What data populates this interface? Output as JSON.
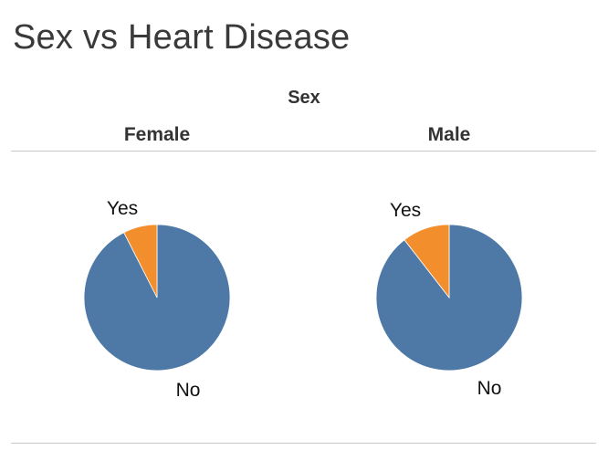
{
  "chart_data": {
    "type": "pie",
    "title": "Sex vs Heart Disease",
    "facet_header": "Sex",
    "colors": {
      "No": "#4e79a7",
      "Yes": "#f28e2b"
    },
    "panels": [
      {
        "name": "Female",
        "slices": [
          {
            "label": "No",
            "value": 92.5
          },
          {
            "label": "Yes",
            "value": 7.5
          }
        ]
      },
      {
        "name": "Male",
        "slices": [
          {
            "label": "No",
            "value": 89.5
          },
          {
            "label": "Yes",
            "value": 10.5
          }
        ]
      }
    ]
  }
}
